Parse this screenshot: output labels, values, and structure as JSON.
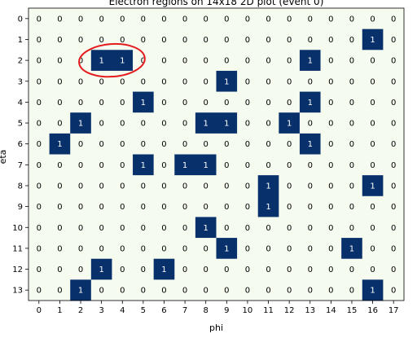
{
  "chart_data": {
    "type": "heatmap",
    "title": "Electron regions on 14x18 2D plot (event 0)",
    "xlabel": "phi",
    "ylabel": "eta",
    "x": [
      0,
      1,
      2,
      3,
      4,
      5,
      6,
      7,
      8,
      9,
      10,
      11,
      12,
      13,
      14,
      15,
      16,
      17
    ],
    "y": [
      0,
      1,
      2,
      3,
      4,
      5,
      6,
      7,
      8,
      9,
      10,
      11,
      12,
      13
    ],
    "values": [
      [
        0,
        0,
        0,
        0,
        0,
        0,
        0,
        0,
        0,
        0,
        0,
        0,
        0,
        0,
        0,
        0,
        0,
        0
      ],
      [
        0,
        0,
        0,
        0,
        0,
        0,
        0,
        0,
        0,
        0,
        0,
        0,
        0,
        0,
        0,
        0,
        1,
        0
      ],
      [
        0,
        0,
        0,
        1,
        1,
        0,
        0,
        0,
        0,
        0,
        0,
        0,
        0,
        1,
        0,
        0,
        0,
        0
      ],
      [
        0,
        0,
        0,
        0,
        0,
        0,
        0,
        0,
        0,
        1,
        0,
        0,
        0,
        0,
        0,
        0,
        0,
        0
      ],
      [
        0,
        0,
        0,
        0,
        0,
        1,
        0,
        0,
        0,
        0,
        0,
        0,
        0,
        1,
        0,
        0,
        0,
        0
      ],
      [
        0,
        0,
        1,
        0,
        0,
        0,
        0,
        0,
        1,
        1,
        0,
        0,
        1,
        0,
        0,
        0,
        0,
        0
      ],
      [
        0,
        1,
        0,
        0,
        0,
        0,
        0,
        0,
        0,
        0,
        0,
        0,
        0,
        1,
        0,
        0,
        0,
        0
      ],
      [
        0,
        0,
        0,
        0,
        0,
        1,
        0,
        1,
        1,
        0,
        0,
        0,
        0,
        0,
        0,
        0,
        0,
        0
      ],
      [
        0,
        0,
        0,
        0,
        0,
        0,
        0,
        0,
        0,
        0,
        0,
        1,
        0,
        0,
        0,
        0,
        1,
        0
      ],
      [
        0,
        0,
        0,
        0,
        0,
        0,
        0,
        0,
        0,
        0,
        0,
        1,
        0,
        0,
        0,
        0,
        0,
        0
      ],
      [
        0,
        0,
        0,
        0,
        0,
        0,
        0,
        0,
        1,
        0,
        0,
        0,
        0,
        0,
        0,
        0,
        0,
        0
      ],
      [
        0,
        0,
        0,
        0,
        0,
        0,
        0,
        0,
        0,
        1,
        0,
        0,
        0,
        0,
        0,
        1,
        0,
        0
      ],
      [
        0,
        0,
        0,
        1,
        0,
        0,
        1,
        0,
        0,
        0,
        0,
        0,
        0,
        0,
        0,
        0,
        0,
        0
      ],
      [
        0,
        0,
        1,
        0,
        0,
        0,
        0,
        0,
        0,
        0,
        0,
        0,
        0,
        0,
        0,
        0,
        1,
        0
      ]
    ],
    "colors": {
      "zero": "#f5fbef",
      "one": "#08306b",
      "zero_text": "#000000",
      "one_text": "#ffffff",
      "annotation": "#e41a1c"
    },
    "annotation": {
      "shape": "circle",
      "rows": [
        2,
        2
      ],
      "cols": [
        2,
        5
      ]
    },
    "grid": false,
    "legend": "none"
  }
}
